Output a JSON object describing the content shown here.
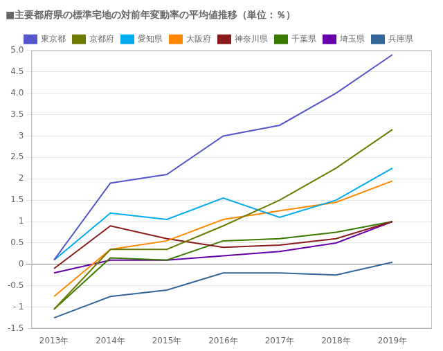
{
  "chart_data": {
    "type": "line",
    "title": "■主要都府県の標準宅地の対前年変動率の平均値推移（単位：％）",
    "x": [
      2013,
      2014,
      2015,
      2016,
      2017,
      2018,
      2019
    ],
    "series": [
      {
        "name": "東京都",
        "color": "#5555cc",
        "values": [
          0.1,
          1.9,
          2.1,
          3.0,
          3.25,
          4.0,
          4.9
        ]
      },
      {
        "name": "京都府",
        "color": "#6e7a00",
        "values": [
          -1.05,
          0.35,
          0.35,
          0.9,
          1.5,
          2.25,
          3.15
        ]
      },
      {
        "name": "愛知県",
        "color": "#00aaee",
        "values": [
          0.1,
          1.2,
          1.05,
          1.55,
          1.1,
          1.5,
          2.25
        ]
      },
      {
        "name": "大阪府",
        "color": "#ff8800",
        "values": [
          -0.75,
          0.35,
          0.55,
          1.05,
          1.25,
          1.45,
          1.95
        ]
      },
      {
        "name": "神奈川県",
        "color": "#8b1a1a",
        "values": [
          -0.1,
          0.9,
          0.6,
          0.4,
          0.45,
          0.6,
          1.0
        ]
      },
      {
        "name": "千葉県",
        "color": "#3a7a00",
        "values": [
          -1.05,
          0.15,
          0.1,
          0.55,
          0.6,
          0.75,
          1.0
        ]
      },
      {
        "name": "埼玉県",
        "color": "#6600aa",
        "values": [
          -0.2,
          0.1,
          0.1,
          0.2,
          0.3,
          0.5,
          1.0
        ]
      },
      {
        "name": "兵庫県",
        "color": "#336699",
        "values": [
          -1.25,
          -0.75,
          -0.6,
          -0.2,
          -0.2,
          -0.25,
          0.05
        ]
      }
    ],
    "xlim": [
      2012.6,
      2019.7
    ],
    "xticks": [
      {
        "value": 2013,
        "label": "2013年"
      },
      {
        "value": 2014,
        "label": "2014年"
      },
      {
        "value": 2015,
        "label": "2015年"
      },
      {
        "value": 2016,
        "label": "2016年"
      },
      {
        "value": 2017,
        "label": "2017年"
      },
      {
        "value": 2018,
        "label": "2018年"
      },
      {
        "value": 2019,
        "label": "2019年"
      }
    ],
    "ylim": [
      -1.5,
      5.0
    ],
    "yticks": [
      -1.5,
      {
        "value": -1.0,
        "label": "- 1"
      },
      -0.5,
      0,
      0.5,
      1,
      1.5,
      2,
      2.5,
      3,
      3.5,
      {
        "value": 4.0,
        "label": "4.0"
      },
      4.5,
      {
        "value": 5.0,
        "label": "5.0"
      }
    ],
    "grid": true,
    "legend": "top",
    "marker": "none"
  }
}
